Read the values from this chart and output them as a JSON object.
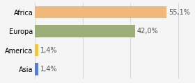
{
  "categories": [
    "Asia",
    "America",
    "Europa",
    "Africa"
  ],
  "values": [
    1.4,
    1.4,
    42.0,
    55.1
  ],
  "labels": [
    "1,4%",
    "1,4%",
    "42,0%",
    "55,1%"
  ],
  "bar_colors": [
    "#5b7ec9",
    "#e8c84a",
    "#9daf78",
    "#f0b87a"
  ],
  "xlim": [
    0,
    63
  ],
  "background_color": "#f5f5f5",
  "label_fontsize": 7,
  "tick_fontsize": 7,
  "bar_height": 0.65
}
